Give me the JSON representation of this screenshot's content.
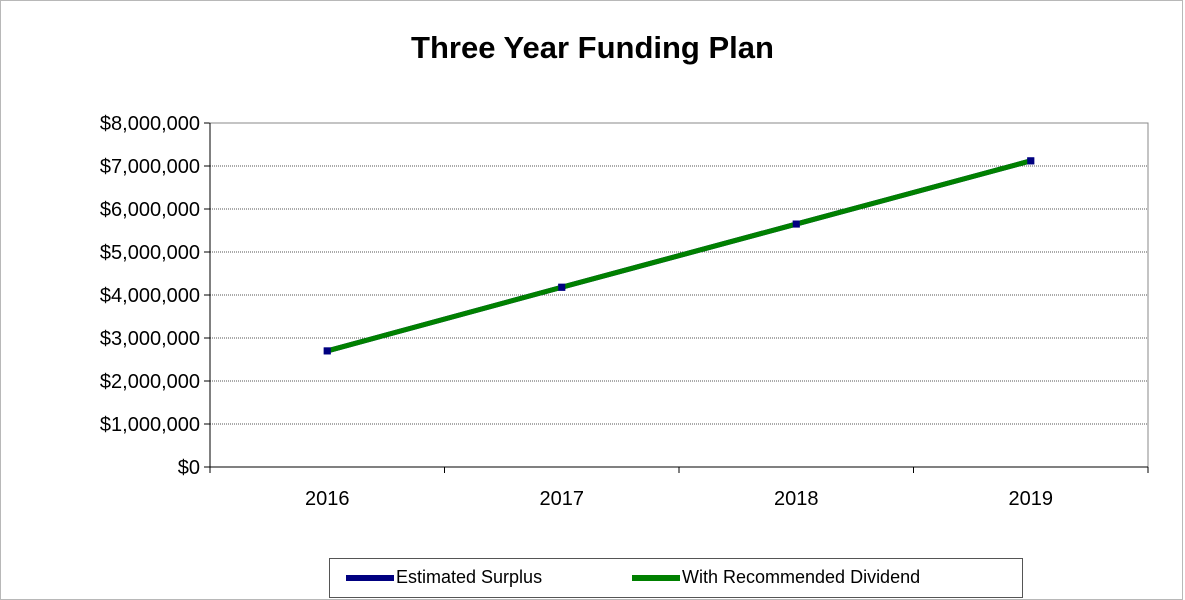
{
  "chart_data": {
    "type": "line",
    "title": "Three Year Funding Plan",
    "x": [
      "2016",
      "2017",
      "2018",
      "2019"
    ],
    "ylim": [
      0,
      8000000
    ],
    "y_ticks": [
      "$0",
      "$1,000,000",
      "$2,000,000",
      "$3,000,000",
      "$4,000,000",
      "$5,000,000",
      "$6,000,000",
      "$7,000,000",
      "$8,000,000"
    ],
    "y_tick_values": [
      0,
      1000000,
      2000000,
      3000000,
      4000000,
      5000000,
      6000000,
      7000000,
      8000000
    ],
    "grid": true,
    "legend_position": "bottom",
    "series": [
      {
        "name": "Estimated Surplus",
        "color": "#000080",
        "values": [
          2700000,
          4180000,
          5650000,
          7120000
        ]
      },
      {
        "name": "With Recommended Dividend",
        "color": "#008000",
        "values": [
          2700000,
          4180000,
          5650000,
          7120000
        ]
      }
    ]
  }
}
